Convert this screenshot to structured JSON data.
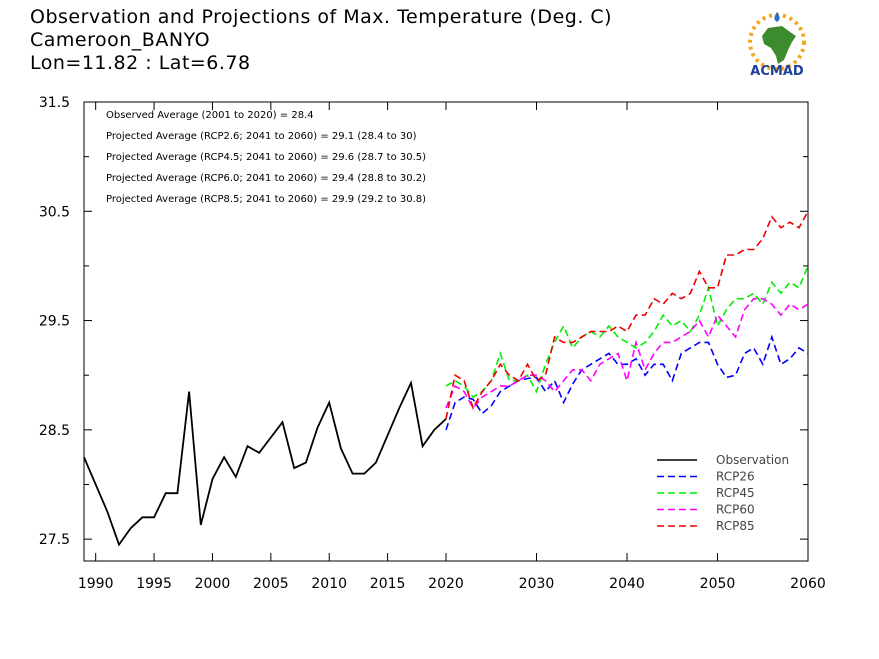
{
  "header": {
    "title": "Observation and Projections of Max. Temperature (Deg. C)",
    "station": "Cameroon_BANYO",
    "coords": "Lon=11.82 : Lat=6.78"
  },
  "logo": {
    "text": "ACMAD",
    "color_text": "#1f3f98",
    "color_africa": "#3c8c2f",
    "color_sun": "#f2a81d"
  },
  "chart_data": {
    "type": "line",
    "xlim": [
      1989,
      2060
    ],
    "ylim": [
      27.3,
      31.5
    ],
    "y_ticks": [
      27.5,
      28.5,
      29.5,
      30.5,
      31.5
    ],
    "y_tick_labels": [
      "27.5",
      "28.5",
      "29.5",
      "30.5",
      "31.5"
    ],
    "x_ticks": [
      1990,
      1995,
      2000,
      2005,
      2010,
      2015,
      2020,
      2030,
      2040,
      2050,
      2060
    ],
    "x_tick_labels": [
      "1990",
      "1995",
      "2000",
      "2005",
      "2010",
      "2015",
      "2020",
      "2030",
      "2040",
      "2050",
      "2060"
    ],
    "x_breakpoint": 2020,
    "legend_position": "bottom-right",
    "annotations": [
      "Observed Average (2001 to 2020) = 28.4",
      "Projected Average (RCP2.6; 2041 to 2060) = 29.1 (28.4 to 30)",
      "Projected Average (RCP4.5; 2041 to 2060) = 29.6 (28.7 to 30.5)",
      "Projected Average (RCP6.0; 2041 to 2060) = 29.4 (28.8 to 30.2)",
      "Projected Average (RCP8.5; 2041 to 2060) = 29.9 (29.2 to 30.8)"
    ],
    "series": [
      {
        "name": "Observation",
        "color": "#000000",
        "dashed": false,
        "x": [
          1989,
          1990,
          1991,
          1992,
          1993,
          1994,
          1995,
          1996,
          1997,
          1998,
          1999,
          2000,
          2001,
          2002,
          2003,
          2004,
          2005,
          2006,
          2007,
          2008,
          2009,
          2010,
          2011,
          2012,
          2013,
          2014,
          2015,
          2016,
          2017,
          2018,
          2019,
          2020
        ],
        "y": [
          28.25,
          28.0,
          27.75,
          27.45,
          27.6,
          27.7,
          27.7,
          27.92,
          27.92,
          28.85,
          27.63,
          28.05,
          28.25,
          28.07,
          28.35,
          28.29,
          28.43,
          28.57,
          28.15,
          28.2,
          28.52,
          28.75,
          28.33,
          28.1,
          28.1,
          28.2,
          28.45,
          28.7,
          28.93,
          28.35,
          28.5,
          28.6
        ]
      },
      {
        "name": "RCP26",
        "color": "#0000ff",
        "dashed": true,
        "x": [
          2020,
          2021,
          2022,
          2023,
          2024,
          2025,
          2026,
          2027,
          2028,
          2029,
          2030,
          2031,
          2032,
          2033,
          2034,
          2035,
          2036,
          2037,
          2038,
          2039,
          2040,
          2041,
          2042,
          2043,
          2044,
          2045,
          2046,
          2047,
          2048,
          2049,
          2050,
          2051,
          2052,
          2053,
          2054,
          2055,
          2056,
          2057,
          2058,
          2059,
          2060
        ],
        "y": [
          28.5,
          28.75,
          28.8,
          28.78,
          28.65,
          28.72,
          28.85,
          28.9,
          28.95,
          28.97,
          28.98,
          28.85,
          28.95,
          28.75,
          28.92,
          29.05,
          29.1,
          29.15,
          29.2,
          29.1,
          29.1,
          29.15,
          29.0,
          29.1,
          29.1,
          28.95,
          29.2,
          29.25,
          29.3,
          29.3,
          29.1,
          28.98,
          29.0,
          29.2,
          29.25,
          29.1,
          29.35,
          29.1,
          29.15,
          29.25,
          29.2
        ]
      },
      {
        "name": "RCP45",
        "color": "#00ee00",
        "dashed": true,
        "x": [
          2020,
          2021,
          2022,
          2023,
          2024,
          2025,
          2026,
          2027,
          2028,
          2029,
          2030,
          2031,
          2032,
          2033,
          2034,
          2035,
          2036,
          2037,
          2038,
          2039,
          2040,
          2041,
          2042,
          2043,
          2044,
          2045,
          2046,
          2047,
          2048,
          2049,
          2050,
          2051,
          2052,
          2053,
          2054,
          2055,
          2056,
          2057,
          2058,
          2059,
          2060
        ],
        "y": [
          28.9,
          28.95,
          28.9,
          28.8,
          28.85,
          28.95,
          29.2,
          28.95,
          28.95,
          29.0,
          28.85,
          29.1,
          29.3,
          29.45,
          29.25,
          29.35,
          29.4,
          29.35,
          29.45,
          29.35,
          29.3,
          29.25,
          29.3,
          29.4,
          29.55,
          29.45,
          29.5,
          29.4,
          29.55,
          29.8,
          29.45,
          29.6,
          29.7,
          29.7,
          29.75,
          29.65,
          29.85,
          29.75,
          29.85,
          29.8,
          30.0
        ]
      },
      {
        "name": "RCP60",
        "color": "#ff00ff",
        "dashed": true,
        "x": [
          2020,
          2021,
          2022,
          2023,
          2024,
          2025,
          2026,
          2027,
          2028,
          2029,
          2030,
          2031,
          2032,
          2033,
          2034,
          2035,
          2036,
          2037,
          2038,
          2039,
          2040,
          2041,
          2042,
          2043,
          2044,
          2045,
          2046,
          2047,
          2048,
          2049,
          2050,
          2051,
          2052,
          2053,
          2054,
          2055,
          2056,
          2057,
          2058,
          2059,
          2060
        ],
        "y": [
          28.7,
          28.9,
          28.85,
          28.7,
          28.8,
          28.85,
          28.9,
          28.9,
          28.95,
          29.0,
          29.0,
          28.95,
          28.85,
          28.95,
          29.05,
          29.05,
          28.95,
          29.1,
          29.15,
          29.2,
          28.95,
          29.3,
          29.05,
          29.2,
          29.3,
          29.3,
          29.35,
          29.4,
          29.5,
          29.35,
          29.55,
          29.45,
          29.35,
          29.6,
          29.7,
          29.7,
          29.65,
          29.55,
          29.65,
          29.6,
          29.65
        ]
      },
      {
        "name": "RCP85",
        "color": "#ee0000",
        "dashed": true,
        "x": [
          2020,
          2021,
          2022,
          2023,
          2024,
          2025,
          2026,
          2027,
          2028,
          2029,
          2030,
          2031,
          2032,
          2033,
          2034,
          2035,
          2036,
          2037,
          2038,
          2039,
          2040,
          2041,
          2042,
          2043,
          2044,
          2045,
          2046,
          2047,
          2048,
          2049,
          2050,
          2051,
          2052,
          2053,
          2054,
          2055,
          2056,
          2057,
          2058,
          2059,
          2060
        ],
        "y": [
          28.6,
          29.0,
          28.95,
          28.7,
          28.85,
          28.95,
          29.1,
          29.0,
          28.95,
          29.1,
          28.95,
          29.0,
          29.35,
          29.3,
          29.3,
          29.35,
          29.4,
          29.4,
          29.4,
          29.45,
          29.4,
          29.55,
          29.55,
          29.7,
          29.65,
          29.75,
          29.7,
          29.75,
          29.95,
          29.8,
          29.8,
          30.1,
          30.1,
          30.15,
          30.15,
          30.25,
          30.45,
          30.35,
          30.4,
          30.35,
          30.5
        ]
      }
    ]
  }
}
